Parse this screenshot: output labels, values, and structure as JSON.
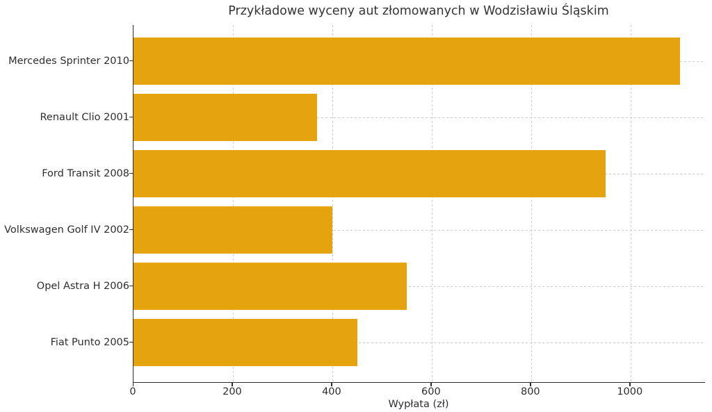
{
  "chart_data": {
    "type": "bar",
    "orientation": "horizontal",
    "title": "Przykładowe wyceny aut złomowanych w Wodzisławiu Śląskim",
    "xlabel": "Wypłata (zł)",
    "ylabel": "",
    "categories": [
      "Mercedes Sprinter 2010",
      "Renault Clio 2001",
      "Ford Transit 2008",
      "Volkswagen Golf IV 2002",
      "Opel Astra H 2006",
      "Fiat Punto 2005"
    ],
    "values": [
      1100,
      370,
      950,
      400,
      550,
      450
    ],
    "xlim": [
      0,
      1150
    ],
    "xticks": [
      0,
      200,
      400,
      600,
      800,
      1000
    ],
    "grid": "both",
    "grid_style": "dashed",
    "legend": "none",
    "colors": {
      "bar": "#E5A40D",
      "grid": "#cbcbcb",
      "spine": "#2b2b2b",
      "text": "#2e2e2e"
    }
  }
}
